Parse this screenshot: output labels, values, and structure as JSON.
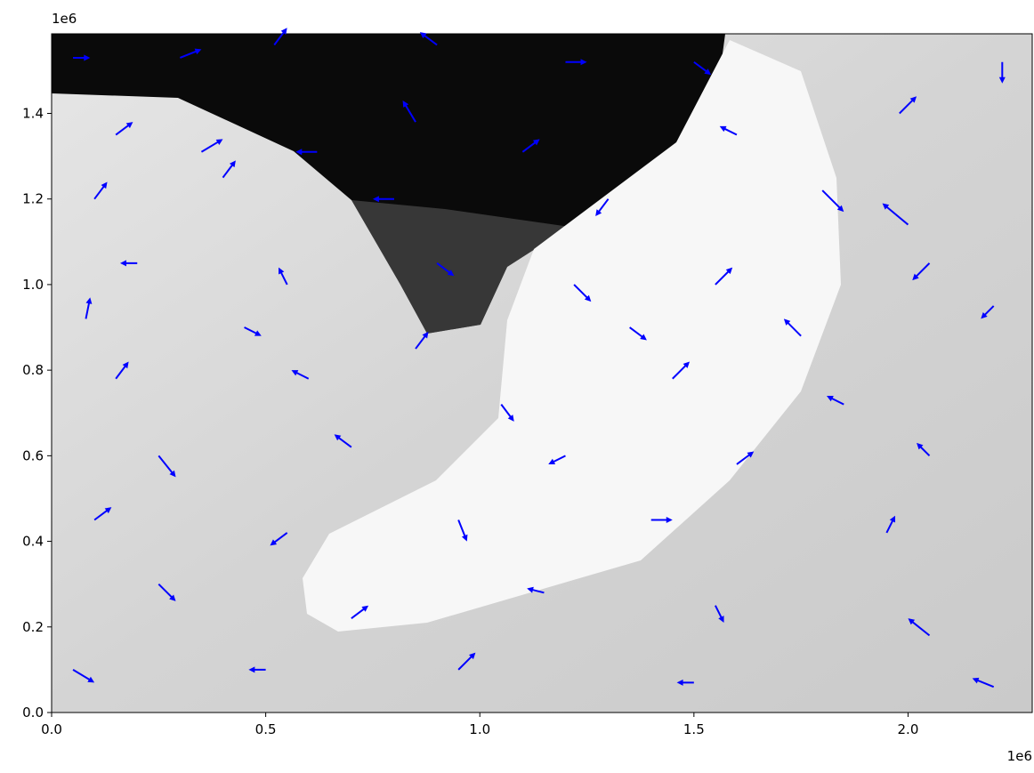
{
  "chart_data": {
    "type": "quiver",
    "x_offset_label": "1e6",
    "y_offset_label": "1e6",
    "xlim": [
      0,
      2290000
    ],
    "ylim": [
      0,
      1586000
    ],
    "xticks": [
      {
        "value": 0,
        "label": "0.0"
      },
      {
        "value": 500000,
        "label": "0.5"
      },
      {
        "value": 1000000,
        "label": "1.0"
      },
      {
        "value": 1500000,
        "label": "1.5"
      },
      {
        "value": 2000000,
        "label": "2.0"
      }
    ],
    "yticks": [
      {
        "value": 0,
        "label": "0.0"
      },
      {
        "value": 200000,
        "label": "0.2"
      },
      {
        "value": 400000,
        "label": "0.4"
      },
      {
        "value": 600000,
        "label": "0.6"
      },
      {
        "value": 800000,
        "label": "0.8"
      },
      {
        "value": 1000000,
        "label": "1.0"
      },
      {
        "value": 1200000,
        "label": "1.2"
      },
      {
        "value": 1400000,
        "label": "1.4"
      }
    ],
    "color": "#0000ff",
    "x": [
      50000,
      300000,
      520000,
      900000,
      1200000,
      1500000,
      150000,
      350000,
      620000,
      850000,
      1100000,
      1600000,
      1980000,
      2220000,
      100000,
      400000,
      800000,
      1300000,
      1800000,
      2000000,
      200000,
      550000,
      900000,
      1220000,
      1550000,
      2050000,
      80000,
      450000,
      850000,
      1350000,
      1750000,
      2200000,
      150000,
      600000,
      1050000,
      1450000,
      1850000,
      250000,
      700000,
      1200000,
      1600000,
      2050000,
      100000,
      550000,
      950000,
      1400000,
      1950000,
      250000,
      700000,
      1150000,
      1550000,
      2050000,
      50000,
      500000,
      950000,
      1500000,
      2200000
    ],
    "y": [
      1530000,
      1530000,
      1560000,
      1560000,
      1520000,
      1520000,
      1350000,
      1310000,
      1310000,
      1380000,
      1310000,
      1350000,
      1400000,
      1520000,
      1200000,
      1250000,
      1200000,
      1200000,
      1220000,
      1140000,
      1050000,
      1000000,
      1050000,
      1000000,
      1000000,
      1050000,
      920000,
      900000,
      850000,
      900000,
      880000,
      950000,
      780000,
      780000,
      720000,
      780000,
      720000,
      600000,
      620000,
      600000,
      580000,
      600000,
      450000,
      420000,
      450000,
      450000,
      420000,
      300000,
      220000,
      280000,
      250000,
      180000,
      100000,
      100000,
      100000,
      70000,
      60000
    ],
    "u": [
      40000,
      50000,
      30000,
      -40000,
      50000,
      40000,
      40000,
      50000,
      -50000,
      -30000,
      40000,
      -40000,
      40000,
      0,
      30000,
      30000,
      -50000,
      -30000,
      50000,
      -60000,
      -40000,
      -20000,
      40000,
      40000,
      40000,
      -40000,
      10000,
      40000,
      30000,
      40000,
      -40000,
      -30000,
      30000,
      -40000,
      30000,
      40000,
      -40000,
      40000,
      -40000,
      -40000,
      40000,
      -30000,
      40000,
      -40000,
      20000,
      50000,
      20000,
      40000,
      40000,
      -40000,
      20000,
      -50000,
      50000,
      -40000,
      40000,
      -40000,
      -50000
    ],
    "v": [
      0,
      20000,
      40000,
      30000,
      0,
      -30000,
      30000,
      30000,
      0,
      50000,
      30000,
      20000,
      40000,
      -50000,
      40000,
      40000,
      0,
      -40000,
      -50000,
      50000,
      0,
      40000,
      -30000,
      -40000,
      40000,
      -40000,
      50000,
      -20000,
      40000,
      -30000,
      40000,
      -30000,
      40000,
      20000,
      -40000,
      40000,
      20000,
      -50000,
      30000,
      -20000,
      30000,
      30000,
      30000,
      -30000,
      -50000,
      0,
      40000,
      -40000,
      30000,
      10000,
      -40000,
      40000,
      -30000,
      0,
      40000,
      0,
      20000
    ]
  }
}
